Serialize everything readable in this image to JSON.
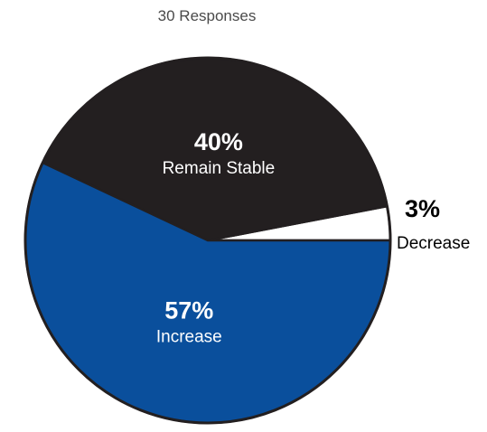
{
  "chart_data": {
    "type": "pie",
    "title": "",
    "subtitle": "30 Responses",
    "slices": [
      {
        "label": "Decrease",
        "percent_label": "3%",
        "value": 3,
        "color": "#ffffff",
        "label_color": "#000000"
      },
      {
        "label": "Remain Stable",
        "percent_label": "40%",
        "value": 40,
        "color": "#231f20",
        "label_color": "#ffffff"
      },
      {
        "label": "Increase",
        "percent_label": "57%",
        "value": 57,
        "color": "#0a4f9c",
        "label_color": "#ffffff"
      }
    ]
  }
}
